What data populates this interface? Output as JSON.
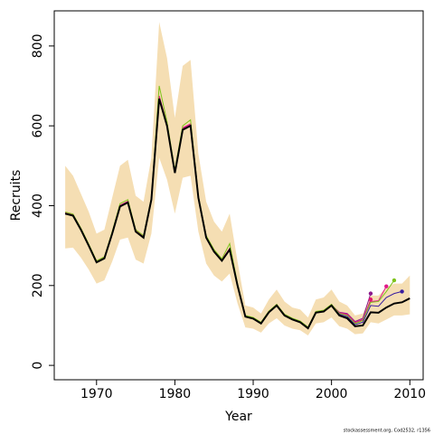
{
  "chart_data": {
    "type": "line",
    "xlabel": "Year",
    "ylabel": "Recruits",
    "footnote": "stockassessment.org, Cod2532, r1356",
    "xlim": [
      1964.6,
      2011.7
    ],
    "ylim": [
      -36,
      888
    ],
    "xticks": [
      1970,
      1980,
      1990,
      2000,
      2010
    ],
    "yticks": [
      0,
      200,
      400,
      600,
      800
    ],
    "x": [
      1966,
      1967,
      1968,
      1969,
      1970,
      1971,
      1972,
      1973,
      1974,
      1975,
      1976,
      1977,
      1978,
      1979,
      1980,
      1981,
      1982,
      1983,
      1984,
      1985,
      1986,
      1987,
      1988,
      1989,
      1990,
      1991,
      1992,
      1993,
      1994,
      1995,
      1996,
      1997,
      1998,
      1999,
      2000,
      2001,
      2002,
      2003,
      2004,
      2005,
      2006,
      2007,
      2008,
      2009,
      2010
    ],
    "band": {
      "color": "#f5deb3",
      "upper": [
        500,
        475,
        430,
        385,
        330,
        340,
        420,
        500,
        515,
        425,
        410,
        520,
        860,
        770,
        620,
        750,
        765,
        530,
        410,
        360,
        335,
        380,
        260,
        150,
        145,
        130,
        165,
        190,
        160,
        145,
        140,
        120,
        165,
        170,
        190,
        160,
        150,
        125,
        130,
        175,
        175,
        195,
        205,
        205,
        225
      ],
      "lower": [
        293,
        295,
        270,
        240,
        205,
        213,
        260,
        315,
        320,
        265,
        255,
        330,
        520,
        465,
        380,
        470,
        475,
        335,
        255,
        225,
        210,
        230,
        155,
        95,
        92,
        82,
        105,
        118,
        100,
        92,
        88,
        75,
        105,
        108,
        120,
        98,
        92,
        78,
        80,
        108,
        105,
        115,
        125,
        125,
        128
      ]
    },
    "series": [
      {
        "color": "#8b1a8b",
        "values": [
          382,
          377,
          342,
          302,
          260,
          270,
          332,
          400,
          410,
          337,
          322,
          417,
          672,
          603,
          485,
          593,
          603,
          422,
          322,
          287,
          264,
          292,
          202,
          123,
          118,
          106,
          134,
          151,
          126,
          116,
          109,
          94,
          133,
          136,
          151,
          133,
          130,
          110,
          118,
          180,
          null,
          null,
          null,
          null,
          null
        ]
      },
      {
        "color": "#e3166f",
        "values": [
          381,
          376,
          341,
          301,
          259,
          269,
          331,
          399,
          409,
          336,
          321,
          416,
          670,
          602,
          484,
          592,
          602,
          421,
          321,
          286,
          263,
          291,
          201,
          122,
          117,
          105,
          133,
          150,
          125,
          115,
          108,
          93,
          132,
          135,
          150,
          130,
          127,
          107,
          113,
          165,
          null,
          null,
          null,
          null,
          null
        ]
      },
      {
        "color": "#e0198a",
        "values": [
          383,
          378,
          343,
          303,
          261,
          271,
          333,
          401,
          411,
          338,
          323,
          418,
          675,
          605,
          486,
          595,
          605,
          423,
          323,
          288,
          265,
          293,
          203,
          124,
          119,
          107,
          135,
          152,
          127,
          117,
          110,
          95,
          134,
          137,
          152,
          132,
          128,
          108,
          115,
          160,
          162,
          198,
          null,
          null,
          null
        ]
      },
      {
        "color": "#7fc31c",
        "values": [
          384,
          379,
          344,
          304,
          262,
          272,
          335,
          405,
          415,
          340,
          325,
          420,
          700,
          610,
          490,
          600,
          615,
          425,
          325,
          290,
          267,
          305,
          205,
          125,
          120,
          108,
          136,
          153,
          128,
          118,
          111,
          96,
          135,
          138,
          153,
          130,
          125,
          105,
          112,
          158,
          160,
          185,
          213,
          null,
          null
        ]
      },
      {
        "color": "#3a1fa0",
        "values": [
          380,
          375,
          340,
          300,
          258,
          268,
          330,
          398,
          408,
          335,
          320,
          415,
          668,
          600,
          482,
          590,
          600,
          420,
          320,
          285,
          262,
          290,
          200,
          122,
          117,
          105,
          133,
          150,
          125,
          115,
          108,
          93,
          132,
          135,
          150,
          128,
          122,
          102,
          108,
          150,
          148,
          170,
          180,
          185,
          null
        ]
      },
      {
        "color": "#000000",
        "values": [
          380,
          375,
          340,
          300,
          258,
          268,
          330,
          398,
          408,
          335,
          320,
          415,
          668,
          600,
          482,
          590,
          600,
          420,
          320,
          285,
          262,
          290,
          200,
          122,
          117,
          105,
          133,
          150,
          125,
          115,
          108,
          93,
          132,
          135,
          150,
          125,
          118,
          98,
          100,
          133,
          132,
          145,
          155,
          158,
          168
        ]
      }
    ]
  }
}
